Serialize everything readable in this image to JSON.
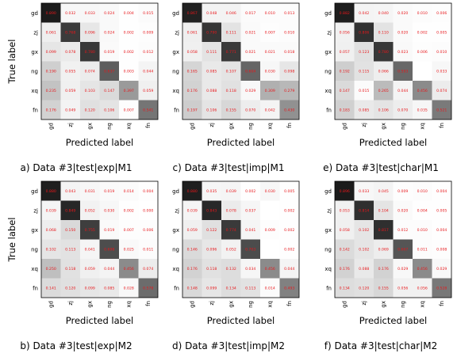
{
  "labels": [
    "gd",
    "zj",
    "gx",
    "ng",
    "xq",
    "fn"
  ],
  "ylabel": "True label",
  "xlabel": "Predicted label",
  "colors": {
    "text": "#e8171b",
    "grid_line": "#000000"
  },
  "chart_data": [
    {
      "type": "heatmap",
      "caption": "a) Data #3|test|exp|M1",
      "xlabel": "Predicted label",
      "ylabel": "True label",
      "x_categories": [
        "gd",
        "zj",
        "gx",
        "ng",
        "xq",
        "fn"
      ],
      "y_categories": [
        "gd",
        "zj",
        "gx",
        "ng",
        "xq",
        "fn"
      ],
      "values": [
        [
          "0.890",
          "0.032",
          "0.033",
          "0.024",
          "0.004",
          "0.015"
        ],
        [
          "0.061",
          "0.768",
          "0.096",
          "0.024",
          "0.002",
          "0.009"
        ],
        [
          "0.099",
          "0.078",
          "0.780",
          "0.019",
          "0.002",
          "0.012"
        ],
        [
          "0.190",
          "0.055",
          "0.074",
          "0.637",
          "0.003",
          "0.044"
        ],
        [
          "0.235",
          "0.059",
          "0.103",
          "0.147",
          "0.397",
          "0.059"
        ],
        [
          "0.176",
          "0.049",
          "0.120",
          "0.106",
          "0.007",
          "0.541"
        ]
      ]
    },
    {
      "type": "heatmap",
      "caption": "c) Data #3|test|imp|M1",
      "xlabel": "Predicted label",
      "ylabel": "",
      "x_categories": [
        "gd",
        "zj",
        "gx",
        "ng",
        "xq",
        "fn"
      ],
      "y_categories": [
        "gd",
        "zj",
        "gx",
        "ng",
        "xq",
        "fn"
      ],
      "values": [
        [
          "0.867",
          "0.048",
          "0.046",
          "0.017",
          "0.010",
          "0.013"
        ],
        [
          "0.061",
          "0.790",
          "0.111",
          "0.021",
          "0.007",
          "0.010"
        ],
        [
          "0.058",
          "0.111",
          "0.771",
          "0.021",
          "0.021",
          "0.018"
        ],
        [
          "0.165",
          "0.085",
          "0.107",
          "0.604",
          "0.030",
          "0.098"
        ],
        [
          "0.176",
          "0.088",
          "0.118",
          "0.029",
          "0.309",
          "0.279"
        ],
        [
          "0.197",
          "0.106",
          "0.155",
          "0.070",
          "0.042",
          "0.430"
        ]
      ]
    },
    {
      "type": "heatmap",
      "caption": "e) Data #3|test|char|M1",
      "xlabel": "Predicted label",
      "ylabel": "",
      "x_categories": [
        "gd",
        "zj",
        "gx",
        "ng",
        "xq",
        "fn"
      ],
      "y_categories": [
        "gd",
        "zj",
        "gx",
        "ng",
        "xq",
        "fn"
      ],
      "values": [
        [
          "0.882",
          "0.042",
          "0.040",
          "0.020",
          "0.010",
          "0.006"
        ],
        [
          "0.056",
          "0.806",
          "0.110",
          "0.020",
          "0.002",
          "0.005"
        ],
        [
          "0.057",
          "0.123",
          "0.780",
          "0.023",
          "0.006",
          "0.010"
        ],
        [
          "0.192",
          "0.115",
          "0.066",
          "0.593",
          "",
          "0.033"
        ],
        [
          "0.147",
          "0.015",
          "0.265",
          "0.044",
          "0.456",
          "0.074"
        ],
        [
          "0.183",
          "0.085",
          "0.106",
          "0.070",
          "0.035",
          "0.521"
        ]
      ]
    },
    {
      "type": "heatmap",
      "caption": "b) Data #3|test|exp|M2",
      "xlabel": "Predicted label",
      "ylabel": "True label",
      "x_categories": [
        "gd",
        "zj",
        "gx",
        "ng",
        "xq",
        "fn"
      ],
      "y_categories": [
        "gd",
        "zj",
        "gx",
        "ng",
        "xq",
        "fn"
      ],
      "values": [
        [
          "0.880",
          "0.043",
          "0.031",
          "0.019",
          "0.014",
          "0.004"
        ],
        [
          "0.039",
          "0.849",
          "0.052",
          "0.030",
          "0.002",
          "0.000"
        ],
        [
          "0.068",
          "0.150",
          "0.755",
          "0.019",
          "0.007",
          "0.006"
        ],
        [
          "0.102",
          "0.113",
          "0.041",
          "0.698",
          "0.025",
          "0.011"
        ],
        [
          "0.250",
          "0.118",
          "0.059",
          "0.044",
          "0.456",
          "0.074"
        ],
        [
          "0.141",
          "0.120",
          "0.099",
          "0.085",
          "0.028",
          "0.578"
        ]
      ]
    },
    {
      "type": "heatmap",
      "caption": "d) Data #3|test|imp|M2",
      "xlabel": "Predicted label",
      "ylabel": "",
      "x_categories": [
        "gd",
        "zj",
        "gx",
        "ng",
        "xq",
        "fn"
      ],
      "y_categories": [
        "gd",
        "zj",
        "gx",
        "ng",
        "xq",
        "fn"
      ],
      "values": [
        [
          "0.880",
          "0.035",
          "0.039",
          "0.002",
          "0.030",
          "0.005"
        ],
        [
          "0.039",
          "0.843",
          "0.078",
          "0.037",
          "",
          "0.002"
        ],
        [
          "0.059",
          "0.122",
          "0.774",
          "0.041",
          "0.009",
          "0.002"
        ],
        [
          "0.146",
          "0.096",
          "0.052",
          "0.703",
          "",
          "0.002"
        ],
        [
          "0.176",
          "0.118",
          "0.132",
          "0.034",
          "0.456",
          "0.044"
        ],
        [
          "0.148",
          "0.099",
          "0.134",
          "0.113",
          "0.014",
          "0.493"
        ]
      ]
    },
    {
      "type": "heatmap",
      "caption": "f) Data #3|test|char|M2",
      "xlabel": "Predicted label",
      "ylabel": "",
      "x_categories": [
        "gd",
        "zj",
        "gx",
        "ng",
        "xq",
        "fn"
      ],
      "y_categories": [
        "gd",
        "zj",
        "gx",
        "ng",
        "xq",
        "fn"
      ],
      "values": [
        [
          "0.896",
          "0.033",
          "0.045",
          "0.009",
          "0.010",
          "0.004"
        ],
        [
          "0.053",
          "0.814",
          "0.104",
          "0.020",
          "0.004",
          "0.005"
        ],
        [
          "0.058",
          "0.102",
          "0.817",
          "0.012",
          "0.010",
          "0.004"
        ],
        [
          "0.142",
          "0.102",
          "0.069",
          "0.667",
          "0.011",
          "0.008"
        ],
        [
          "0.176",
          "0.088",
          "0.176",
          "0.029",
          "0.456",
          "0.029"
        ],
        [
          "0.134",
          "0.120",
          "0.155",
          "0.056",
          "0.056",
          "0.528"
        ]
      ]
    }
  ]
}
